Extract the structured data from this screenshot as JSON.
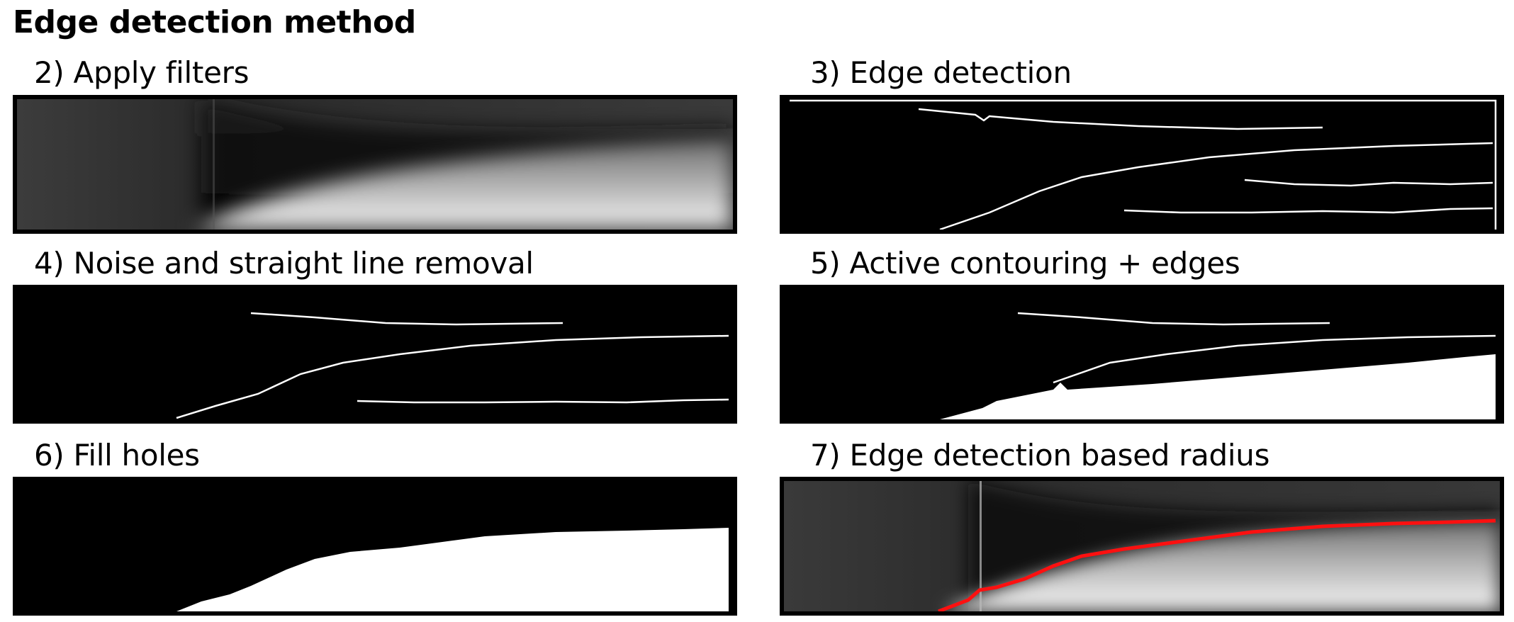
{
  "figure": {
    "title": "Edge detection method",
    "panels": [
      {
        "id": "p2",
        "label": "2) Apply filters"
      },
      {
        "id": "p3",
        "label": "3) Edge detection"
      },
      {
        "id": "p4",
        "label": "4) Noise and straight line removal"
      },
      {
        "id": "p5",
        "label": "5) Active contouring + edges"
      },
      {
        "id": "p6",
        "label": "6) Fill holes"
      },
      {
        "id": "p7",
        "label": "7) Edge detection based radius"
      }
    ]
  },
  "colors": {
    "radius_line": "#ff1010",
    "edge_line": "#ffffff",
    "background": "#000000"
  }
}
